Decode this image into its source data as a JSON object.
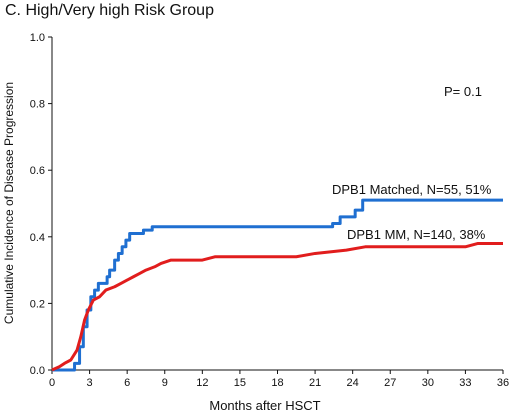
{
  "chart_data": {
    "type": "line",
    "title": "C. High/Very high Risk Group",
    "xlabel": "Months after HSCT",
    "ylabel": "Cumulative Incidence of Disease Progression",
    "xlim": [
      0,
      36
    ],
    "ylim": [
      0,
      1.0
    ],
    "x_ticks": [
      0,
      3,
      6,
      9,
      12,
      15,
      18,
      21,
      24,
      27,
      30,
      33,
      36
    ],
    "y_ticks": [
      "0.0",
      "0.2",
      "0.4",
      "0.6",
      "0.8",
      "1.0"
    ],
    "grid": false,
    "annotation": "P= 0.1",
    "series": [
      {
        "name": "DPB1 Matched, N=55, 51%",
        "color": "#1f6fd1",
        "step": true,
        "points": [
          [
            0,
            0
          ],
          [
            0.7,
            0
          ],
          [
            1.8,
            0.02
          ],
          [
            2.2,
            0.07
          ],
          [
            2.5,
            0.13
          ],
          [
            2.8,
            0.18
          ],
          [
            3.1,
            0.22
          ],
          [
            3.4,
            0.24
          ],
          [
            3.7,
            0.26
          ],
          [
            4.4,
            0.28
          ],
          [
            4.6,
            0.3
          ],
          [
            5.0,
            0.33
          ],
          [
            5.3,
            0.35
          ],
          [
            5.6,
            0.37
          ],
          [
            5.9,
            0.39
          ],
          [
            6.2,
            0.41
          ],
          [
            7.3,
            0.42
          ],
          [
            8.0,
            0.43
          ],
          [
            22.4,
            0.44
          ],
          [
            23.0,
            0.46
          ],
          [
            24.2,
            0.48
          ],
          [
            24.8,
            0.51
          ],
          [
            36,
            0.51
          ]
        ]
      },
      {
        "name": "DPB1 MM, N=140, 38%",
        "color": "#e11d1d",
        "step": false,
        "points": [
          [
            0,
            0
          ],
          [
            0.6,
            0.01
          ],
          [
            1.0,
            0.02
          ],
          [
            1.5,
            0.03
          ],
          [
            2.0,
            0.06
          ],
          [
            2.3,
            0.1
          ],
          [
            2.6,
            0.15
          ],
          [
            2.9,
            0.18
          ],
          [
            3.3,
            0.21
          ],
          [
            3.8,
            0.22
          ],
          [
            4.3,
            0.24
          ],
          [
            5.0,
            0.25
          ],
          [
            5.5,
            0.26
          ],
          [
            6.0,
            0.27
          ],
          [
            6.5,
            0.28
          ],
          [
            7.0,
            0.29
          ],
          [
            7.5,
            0.3
          ],
          [
            8.2,
            0.31
          ],
          [
            8.7,
            0.32
          ],
          [
            9.5,
            0.33
          ],
          [
            12.0,
            0.33
          ],
          [
            13.0,
            0.34
          ],
          [
            19.5,
            0.34
          ],
          [
            21.0,
            0.35
          ],
          [
            23.5,
            0.36
          ],
          [
            25.0,
            0.37
          ],
          [
            33.0,
            0.37
          ],
          [
            34.0,
            0.38
          ],
          [
            36,
            0.38
          ]
        ]
      }
    ]
  }
}
